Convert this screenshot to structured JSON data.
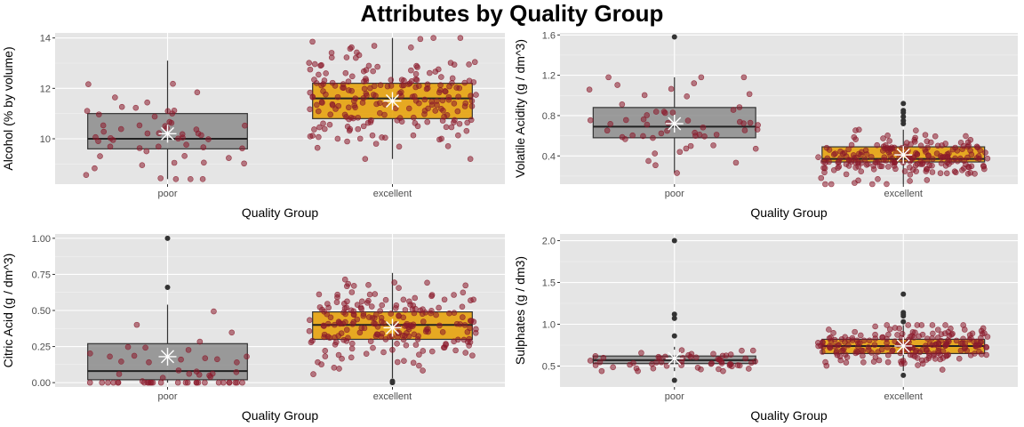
{
  "title": "Attributes by Quality Group",
  "colors": {
    "panel": "#e5e5e5",
    "poor_box": "#8c8c8c",
    "excellent_box": "#e69f00",
    "jitter_points": "#8b1a2b",
    "outlier": "#333333",
    "mean_marker": "#ffffff"
  },
  "chart_data": [
    {
      "type": "box",
      "xlabel": "Quality Group",
      "ylabel": "Alcohol (% by volume)",
      "categories": [
        "poor",
        "excellent"
      ],
      "ylim": [
        8.2,
        14.2
      ],
      "yticks": [
        10,
        12,
        14
      ],
      "ytick_labels": [
        "10",
        "12",
        "14"
      ],
      "boxes": [
        {
          "category": "poor",
          "q1": 9.6,
          "median": 10.0,
          "q3": 11.0,
          "whisker_low": 8.4,
          "whisker_high": 13.1,
          "mean": 10.2,
          "outliers": []
        },
        {
          "category": "excellent",
          "q1": 10.8,
          "median": 11.6,
          "q3": 12.2,
          "whisker_low": 9.2,
          "whisker_high": 14.0,
          "mean": 11.5,
          "outliers": []
        }
      ],
      "grid": true
    },
    {
      "type": "box",
      "xlabel": "Quality Group",
      "ylabel": "Volatile Acidity (g / dm^3)",
      "categories": [
        "poor",
        "excellent"
      ],
      "ylim": [
        0.12,
        1.62
      ],
      "yticks": [
        0.4,
        0.8,
        1.2,
        1.6
      ],
      "ytick_labels": [
        "0.4",
        "0.8",
        "1.2",
        "1.6"
      ],
      "boxes": [
        {
          "category": "poor",
          "q1": 0.58,
          "median": 0.69,
          "q3": 0.88,
          "whisker_low": 0.23,
          "whisker_high": 1.18,
          "mean": 0.72,
          "outliers": [
            1.58
          ]
        },
        {
          "category": "excellent",
          "q1": 0.34,
          "median": 0.37,
          "q3": 0.49,
          "whisker_low": 0.12,
          "whisker_high": 0.66,
          "mean": 0.41,
          "outliers": [
            0.72,
            0.75,
            0.79,
            0.83,
            0.85,
            0.92
          ]
        }
      ],
      "grid": true
    },
    {
      "type": "box",
      "xlabel": "Quality Group",
      "ylabel": "Citric Acid (g / dm^3)",
      "categories": [
        "poor",
        "excellent"
      ],
      "ylim": [
        -0.03,
        1.03
      ],
      "yticks": [
        0.0,
        0.25,
        0.5,
        0.75,
        1.0
      ],
      "ytick_labels": [
        "0.00",
        "0.25",
        "0.50",
        "0.75",
        "1.00"
      ],
      "boxes": [
        {
          "category": "poor",
          "q1": 0.02,
          "median": 0.08,
          "q3": 0.27,
          "whisker_low": 0.0,
          "whisker_high": 0.54,
          "mean": 0.18,
          "outliers": [
            0.66,
            1.0
          ]
        },
        {
          "category": "excellent",
          "q1": 0.3,
          "median": 0.4,
          "q3": 0.49,
          "whisker_low": 0.03,
          "whisker_high": 0.76,
          "mean": 0.38,
          "outliers": [
            0.0,
            0.01
          ]
        }
      ],
      "grid": true
    },
    {
      "type": "box",
      "xlabel": "Quality Group",
      "ylabel": "Sulphates (g / dm3)",
      "categories": [
        "poor",
        "excellent"
      ],
      "ylim": [
        0.25,
        2.08
      ],
      "yticks": [
        0.5,
        1.0,
        1.5,
        2.0
      ],
      "ytick_labels": [
        "0.5",
        "1.0",
        "1.5",
        "2.0"
      ],
      "boxes": [
        {
          "category": "poor",
          "q1": 0.53,
          "median": 0.57,
          "q3": 0.62,
          "whisker_low": 0.44,
          "whisker_high": 0.73,
          "mean": 0.59,
          "outliers": [
            0.33,
            0.86,
            1.07,
            1.12,
            2.0
          ]
        },
        {
          "category": "excellent",
          "q1": 0.65,
          "median": 0.74,
          "q3": 0.82,
          "whisker_low": 0.44,
          "whisker_high": 0.99,
          "mean": 0.74,
          "outliers": [
            0.39,
            1.03,
            1.1,
            1.12,
            1.14,
            1.36
          ]
        }
      ],
      "grid": true
    }
  ]
}
